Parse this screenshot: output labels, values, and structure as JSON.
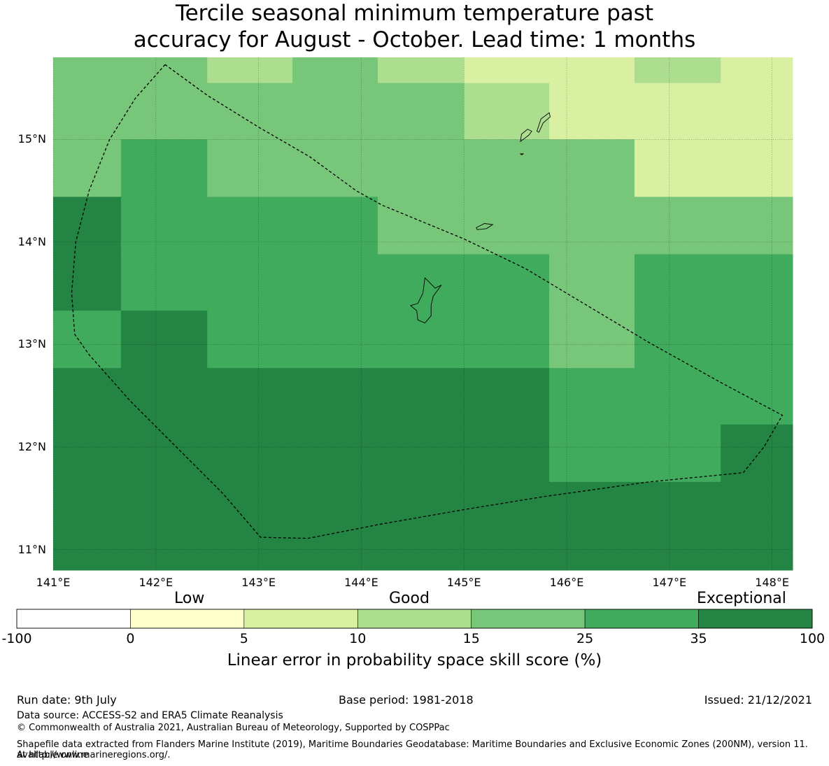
{
  "title": {
    "line1": "Tercile seasonal minimum temperature past",
    "line2": "accuracy for August - October. Lead time: 1 months"
  },
  "map": {
    "lat_ticks": [
      {
        "value": 15,
        "label": "15°N"
      },
      {
        "value": 14,
        "label": "14°N"
      },
      {
        "value": 13,
        "label": "13°N"
      },
      {
        "value": 12,
        "label": "12°N"
      },
      {
        "value": 11,
        "label": "11°N"
      }
    ],
    "lon_ticks": [
      {
        "value": 141,
        "label": "141°E"
      },
      {
        "value": 142,
        "label": "142°E"
      },
      {
        "value": 143,
        "label": "143°E"
      },
      {
        "value": 144,
        "label": "144°E"
      },
      {
        "value": 145,
        "label": "145°E"
      },
      {
        "value": 146,
        "label": "146°E"
      },
      {
        "value": 147,
        "label": "147°E"
      },
      {
        "value": 148,
        "label": "148°E"
      }
    ],
    "extent": {
      "lon_min": 141.0,
      "lon_max": 148.2,
      "lat_min": 10.8,
      "lat_max": 15.8
    },
    "grid_lon_edges": [
      141.0,
      141.66,
      142.5,
      143.33,
      144.16,
      145.0,
      145.83,
      146.66,
      147.5,
      148.2
    ],
    "grid_lat_edges": [
      15.8,
      15.55,
      15.0,
      14.44,
      13.88,
      13.33,
      12.77,
      12.22,
      11.66,
      10.8
    ],
    "cells": [
      [
        "c25",
        "c25",
        "c15",
        "c25",
        "c15",
        "c5",
        "c5",
        "c15",
        "c5"
      ],
      [
        "c25",
        "c25",
        "c25",
        "c25",
        "c25",
        "c15",
        "c5",
        "c5",
        "c5"
      ],
      [
        "c25",
        "c35",
        "c25",
        "c25",
        "c25",
        "c25",
        "c25",
        "c5",
        "c5"
      ],
      [
        "c100",
        "c35",
        "c35",
        "c35",
        "c25",
        "c25",
        "c25",
        "c25",
        "c25"
      ],
      [
        "c100",
        "c35",
        "c35",
        "c35",
        "c35",
        "c35",
        "c25",
        "c35",
        "c35"
      ],
      [
        "c35",
        "c100",
        "c35",
        "c35",
        "c35",
        "c35",
        "c25",
        "c35",
        "c35"
      ],
      [
        "c100",
        "c100",
        "c100",
        "c100",
        "c100",
        "c100",
        "c35",
        "c35",
        "c35"
      ],
      [
        "c100",
        "c100",
        "c100",
        "c100",
        "c100",
        "c100",
        "c35",
        "c35",
        "c100"
      ],
      [
        "c100",
        "c100",
        "c100",
        "c100",
        "c100",
        "c100",
        "c100",
        "c100",
        "c100"
      ]
    ],
    "eez_boundary": [
      [
        142.09,
        15.73
      ],
      [
        141.8,
        15.4
      ],
      [
        141.55,
        15.0
      ],
      [
        141.35,
        14.5
      ],
      [
        141.22,
        14.0
      ],
      [
        141.18,
        13.5
      ],
      [
        141.21,
        13.1
      ],
      [
        141.35,
        12.9
      ],
      [
        141.75,
        12.45
      ],
      [
        142.2,
        12.0
      ],
      [
        142.65,
        11.55
      ],
      [
        143.02,
        11.12
      ],
      [
        143.48,
        11.11
      ],
      [
        144.2,
        11.25
      ],
      [
        145.0,
        11.39
      ],
      [
        145.8,
        11.52
      ],
      [
        146.8,
        11.66
      ],
      [
        147.72,
        11.75
      ],
      [
        147.92,
        12.0
      ],
      [
        148.1,
        12.31
      ],
      [
        147.5,
        12.63
      ],
      [
        146.8,
        13.02
      ],
      [
        146.2,
        13.38
      ],
      [
        145.6,
        13.74
      ],
      [
        145.0,
        14.03
      ],
      [
        144.2,
        14.36
      ],
      [
        143.95,
        14.5
      ],
      [
        143.5,
        14.83
      ],
      [
        143.0,
        15.12
      ],
      [
        142.5,
        15.43
      ],
      [
        142.09,
        15.73
      ]
    ],
    "islands": [
      {
        "name": "guam",
        "points": [
          [
            144.62,
            13.65
          ],
          [
            144.72,
            13.55
          ],
          [
            144.78,
            13.58
          ],
          [
            144.7,
            13.47
          ],
          [
            144.68,
            13.38
          ],
          [
            144.68,
            13.28
          ],
          [
            144.62,
            13.21
          ],
          [
            144.55,
            13.24
          ],
          [
            144.54,
            13.33
          ],
          [
            144.48,
            13.38
          ],
          [
            144.55,
            13.4
          ],
          [
            144.6,
            13.5
          ],
          [
            144.62,
            13.65
          ]
        ]
      },
      {
        "name": "rota",
        "points": [
          [
            145.12,
            14.14
          ],
          [
            145.2,
            14.18
          ],
          [
            145.28,
            14.17
          ],
          [
            145.22,
            14.13
          ],
          [
            145.13,
            14.12
          ],
          [
            145.12,
            14.14
          ]
        ]
      },
      {
        "name": "tinian",
        "points": [
          [
            145.55,
            14.98
          ],
          [
            145.63,
            15.04
          ],
          [
            145.66,
            15.08
          ],
          [
            145.62,
            15.1
          ],
          [
            145.56,
            15.05
          ],
          [
            145.55,
            14.98
          ]
        ]
      },
      {
        "name": "saipan",
        "points": [
          [
            145.71,
            15.08
          ],
          [
            145.75,
            15.2
          ],
          [
            145.83,
            15.26
          ],
          [
            145.84,
            15.22
          ],
          [
            145.77,
            15.16
          ],
          [
            145.73,
            15.07
          ],
          [
            145.71,
            15.08
          ]
        ]
      },
      {
        "name": "aguijan",
        "points": [
          [
            145.55,
            14.86
          ],
          [
            145.58,
            14.86
          ],
          [
            145.56,
            14.85
          ],
          [
            145.55,
            14.86
          ]
        ]
      }
    ]
  },
  "colorbar": {
    "words": {
      "low": "Low",
      "good": "Good",
      "exceptional": "Exceptional"
    },
    "bins": [
      {
        "key": "cneg",
        "color": "#ffffff"
      },
      {
        "key": "c0",
        "color": "#ffffcc"
      },
      {
        "key": "c5",
        "color": "#d9f0a3"
      },
      {
        "key": "c15",
        "color": "#addd8e"
      },
      {
        "key": "c25",
        "color": "#78c679"
      },
      {
        "key": "c35",
        "color": "#41ab5d"
      },
      {
        "key": "c100",
        "color": "#238443"
      }
    ],
    "ticks": [
      "-100",
      "0",
      "5",
      "10",
      "15",
      "25",
      "35",
      "100"
    ],
    "label": "Linear error in probability space skill score (%)"
  },
  "footer": {
    "run_date": "Run date: 9th July",
    "base_period": "Base period: 1981-2018",
    "issued": "Issued: 21/12/2021",
    "data_source": "Data source: ACCESS-S2 and ERA5 Climate Reanalysis",
    "copyright": "© Commonwealth of Australia 2021, Australian Bureau of Meteorology, Supported by COSPPac",
    "shapefile_line1": "Shapefile data extracted from Flanders Marine Institute (2019), Maritime Boundaries Geodatabase: Maritime Boundaries and Exclusive Economic Zones (200NM), version 11. Available online",
    "shapefile_line2": "at http://www.marineregions.org/."
  }
}
